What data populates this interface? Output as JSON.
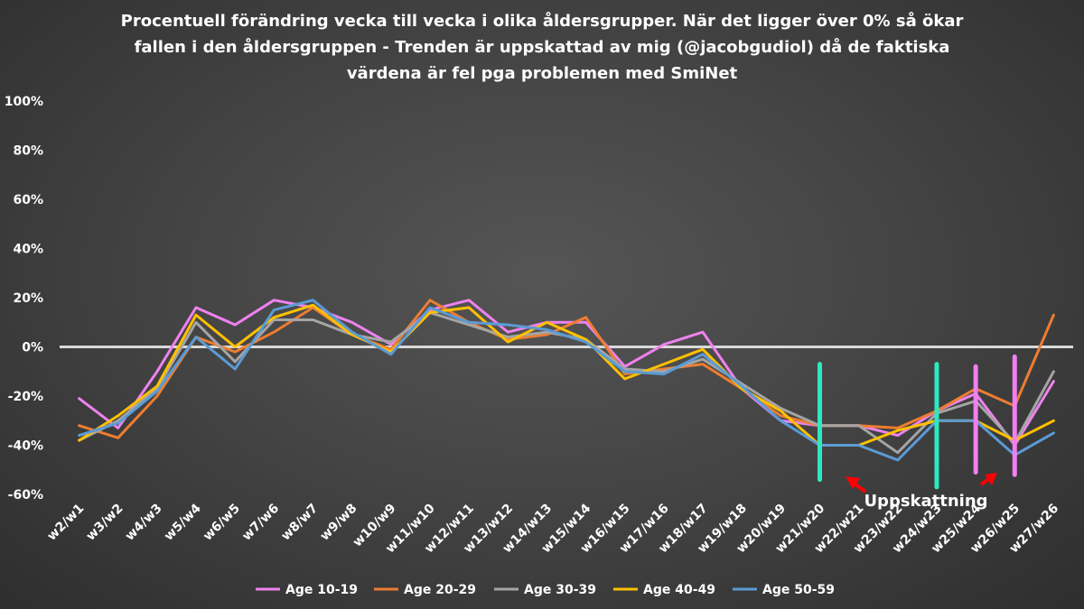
{
  "chart_data": {
    "type": "line",
    "title_lines": [
      "Procentuell förändring vecka till vecka i olika åldersgrupper. När det ligger över 0% så ökar",
      "fallen i den åldersgruppen  - Trenden är uppskattad av mig (@jacobgudiol) då de faktiska",
      "värdena är fel pga problemen med SmiNet"
    ],
    "categories": [
      "w2/w1",
      "w3/w2",
      "w4/w3",
      "w5/w4",
      "w6/w5",
      "w7/w6",
      "w8/w7",
      "w9/w8",
      "w10/w9",
      "w11/w10",
      "w12/w11",
      "w13/w12",
      "w14/w13",
      "w15/w14",
      "w16/w15",
      "w17/w16",
      "w18/w17",
      "w19/w18",
      "w20/w19",
      "w21/w20",
      "w22/w21",
      "w23/w22",
      "w24/w23",
      "w25/w24",
      "w26/w25",
      "w27/w26"
    ],
    "ylim": [
      -60,
      100
    ],
    "yticks": [
      "-60%",
      "-40%",
      "-20%",
      "0%",
      "20%",
      "40%",
      "60%",
      "80%",
      "100%"
    ],
    "series": [
      {
        "name": "Age 10-19",
        "color": "#ee82ee",
        "values": [
          -21,
          -33,
          -10,
          16,
          9,
          19,
          16,
          10,
          1,
          15,
          19,
          6,
          10,
          10,
          -8,
          1,
          6,
          -17,
          -30,
          -32,
          -32,
          -36,
          -26,
          -19,
          -40,
          -14
        ]
      },
      {
        "name": "Age 20-29",
        "color": "#ed7d31",
        "values": [
          -32,
          -37,
          -20,
          4,
          -2,
          6,
          16,
          5,
          -1,
          19,
          10,
          3,
          5,
          12,
          -11,
          -9,
          -7,
          -17,
          -28,
          -32,
          -32,
          -33,
          -26,
          -17,
          -24,
          13
        ]
      },
      {
        "name": "Age 30-39",
        "color": "#a5a5a5",
        "values": [
          -38,
          -30,
          -17,
          10,
          -6,
          11,
          11,
          5,
          2,
          14,
          9,
          4,
          6,
          3,
          -9,
          -10,
          -5,
          -15,
          -25,
          -32,
          -32,
          -43,
          -27,
          -22,
          -39,
          -10
        ]
      },
      {
        "name": "Age 40-49",
        "color": "#ffc000",
        "values": [
          -38,
          -28,
          -16,
          13,
          0,
          12,
          17,
          5,
          -2,
          14,
          16,
          2,
          10,
          3,
          -13,
          -7,
          -1,
          -17,
          -26,
          -40,
          -40,
          -34,
          -30,
          -30,
          -38,
          -30
        ]
      },
      {
        "name": "Age 50-59",
        "color": "#5b9bd5",
        "values": [
          -36,
          -31,
          -18,
          4,
          -9,
          15,
          19,
          6,
          -3,
          16,
          10,
          9,
          7,
          2,
          -10,
          -11,
          -3,
          -16,
          -30,
          -40,
          -40,
          -46,
          -30,
          -30,
          -44,
          -35
        ]
      }
    ],
    "zero_line_color": "#d9d9d9",
    "markers": [
      {
        "color": "#2ee8c0",
        "at": 19.5,
        "from": -7,
        "to": -54
      },
      {
        "color": "#2ee8c0",
        "at": 22.5,
        "from": -7,
        "to": -57
      },
      {
        "color": "#f07ff0",
        "at": 23.5,
        "from": -8,
        "to": -51
      },
      {
        "color": "#f07ff0",
        "at": 24.5,
        "from": -4,
        "to": -52
      }
    ],
    "annotation": {
      "text": "Uppskattning",
      "arrow_color": "#ff0000"
    },
    "legend_position": "bottom"
  }
}
